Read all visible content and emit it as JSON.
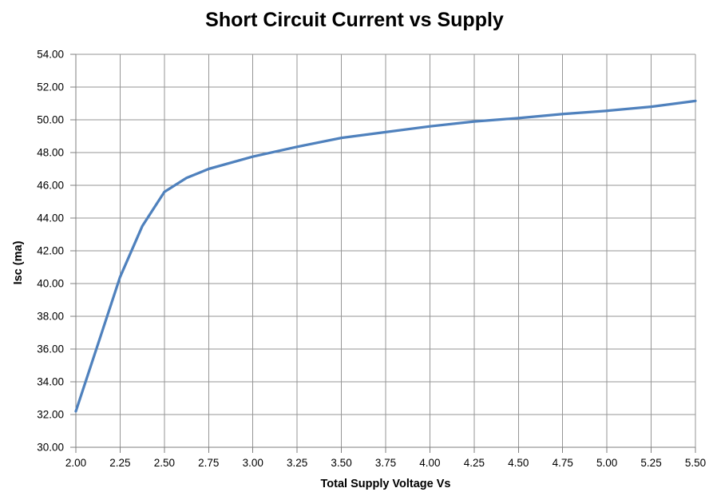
{
  "chart_data": {
    "type": "line",
    "title": "Short Circuit Current vs Supply",
    "xlabel": "Total Supply Voltage Vs",
    "ylabel": "Isc (ma)",
    "x_range": [
      2.0,
      5.5
    ],
    "y_range": [
      30.0,
      54.0
    ],
    "grid": "both",
    "legend": "none",
    "colors": {
      "line": "#4F81BD",
      "gridline": "#969696",
      "axis": "#7F7F7F",
      "text": "#000000",
      "background": "#FFFFFF"
    },
    "x_ticks": [
      {
        "v": 2.0,
        "label": "2.00"
      },
      {
        "v": 2.25,
        "label": "2.25"
      },
      {
        "v": 2.5,
        "label": "2.50"
      },
      {
        "v": 2.75,
        "label": "2.75"
      },
      {
        "v": 3.0,
        "label": "3.00"
      },
      {
        "v": 3.25,
        "label": "3.25"
      },
      {
        "v": 3.5,
        "label": "3.50"
      },
      {
        "v": 3.75,
        "label": "3.75"
      },
      {
        "v": 4.0,
        "label": "4.00"
      },
      {
        "v": 4.25,
        "label": "4.25"
      },
      {
        "v": 4.5,
        "label": "4.50"
      },
      {
        "v": 4.75,
        "label": "4.75"
      },
      {
        "v": 5.0,
        "label": "5.00"
      },
      {
        "v": 5.25,
        "label": "5.25"
      },
      {
        "v": 5.5,
        "label": "5.50"
      }
    ],
    "y_ticks": [
      {
        "v": 30,
        "label": "30.00"
      },
      {
        "v": 32,
        "label": "32.00"
      },
      {
        "v": 34,
        "label": "34.00"
      },
      {
        "v": 36,
        "label": "36.00"
      },
      {
        "v": 38,
        "label": "38.00"
      },
      {
        "v": 40,
        "label": "40.00"
      },
      {
        "v": 42,
        "label": "42.00"
      },
      {
        "v": 44,
        "label": "44.00"
      },
      {
        "v": 46,
        "label": "46.00"
      },
      {
        "v": 48,
        "label": "48.00"
      },
      {
        "v": 50,
        "label": "50.00"
      },
      {
        "v": 52,
        "label": "52.00"
      },
      {
        "v": 54,
        "label": "54.00"
      }
    ],
    "series": [
      {
        "points": [
          [
            2.0,
            32.2
          ],
          [
            2.25,
            40.4
          ],
          [
            2.375,
            43.5
          ],
          [
            2.5,
            45.6
          ],
          [
            2.625,
            46.45
          ],
          [
            2.75,
            47.0
          ],
          [
            3.0,
            47.75
          ],
          [
            3.25,
            48.35
          ],
          [
            3.5,
            48.9
          ],
          [
            3.75,
            49.25
          ],
          [
            4.0,
            49.6
          ],
          [
            4.25,
            49.9
          ],
          [
            4.5,
            50.1
          ],
          [
            4.75,
            50.35
          ],
          [
            5.0,
            50.55
          ],
          [
            5.25,
            50.8
          ],
          [
            5.5,
            51.15
          ]
        ]
      }
    ]
  }
}
